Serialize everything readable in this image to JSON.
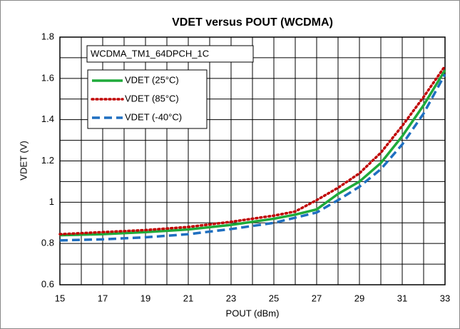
{
  "chart_data": {
    "type": "line",
    "title": "VDET versus POUT (WCDMA)",
    "xlabel": "POUT (dBm)",
    "ylabel": "VDET (V)",
    "annotation": "WCDMA_TM1_64DPCH_1C",
    "x": [
      15,
      17,
      19,
      21,
      23,
      25,
      26,
      27,
      28,
      29,
      30,
      31,
      32,
      33
    ],
    "series": [
      {
        "name": "VDET (25°C)",
        "color": "#1faa3a",
        "dash": "solid",
        "values": [
          0.84,
          0.845,
          0.855,
          0.868,
          0.89,
          0.92,
          0.94,
          0.965,
          1.04,
          1.1,
          1.19,
          1.32,
          1.47,
          1.64
        ]
      },
      {
        "name": "VDET (85°C)",
        "color": "#c00000",
        "dash": "dotted",
        "values": [
          0.845,
          0.855,
          0.865,
          0.88,
          0.905,
          0.935,
          0.955,
          1.01,
          1.07,
          1.14,
          1.24,
          1.37,
          1.51,
          1.66
        ]
      },
      {
        "name": "VDET (-40°C)",
        "color": "#1f6fc0",
        "dash": "dashed",
        "values": [
          0.815,
          0.82,
          0.83,
          0.845,
          0.87,
          0.9,
          0.925,
          0.95,
          1.01,
          1.075,
          1.16,
          1.28,
          1.43,
          1.62
        ]
      }
    ],
    "xlim": [
      15,
      33
    ],
    "xticks": [
      15,
      17,
      19,
      21,
      23,
      25,
      27,
      29,
      31,
      33
    ],
    "xminorticks": [
      16,
      18,
      20,
      22,
      24,
      26,
      28,
      30,
      32
    ],
    "ylim": [
      0.6,
      1.8
    ],
    "yticks": [
      0.6,
      0.8,
      1,
      1.2,
      1.4,
      1.6,
      1.8
    ],
    "yminorticks": [
      0.7,
      0.9,
      1.1,
      1.3,
      1.5,
      1.7
    ],
    "grid": true
  }
}
